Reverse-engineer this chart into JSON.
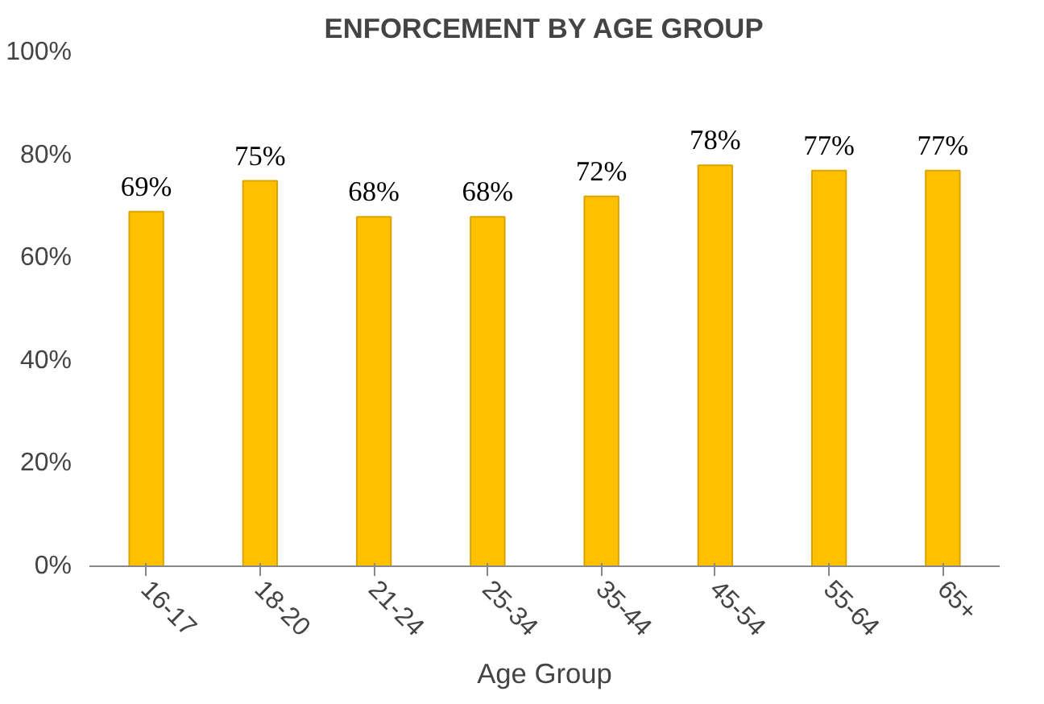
{
  "chart_data": {
    "type": "bar",
    "title": "ENFORCEMENT BY AGE GROUP",
    "xlabel": "Age Group",
    "categories": [
      "16-17",
      "18-20",
      "21-24",
      "25-34",
      "35-44",
      "45-54",
      "55-64",
      "65+"
    ],
    "values": [
      69,
      75,
      68,
      68,
      72,
      78,
      77,
      77
    ],
    "value_labels": [
      "69%",
      "75%",
      "68%",
      "68%",
      "72%",
      "78%",
      "77%",
      "77%"
    ],
    "color": "#ffc000",
    "ylim": [
      0,
      100
    ],
    "yticks": [
      {
        "value": 0,
        "label": "0%"
      },
      {
        "value": 20,
        "label": "20%"
      },
      {
        "value": 40,
        "label": "40%"
      },
      {
        "value": 60,
        "label": "60%"
      },
      {
        "value": 80,
        "label": "80%"
      },
      {
        "value": 100,
        "label": "100%"
      }
    ],
    "grid": false
  }
}
